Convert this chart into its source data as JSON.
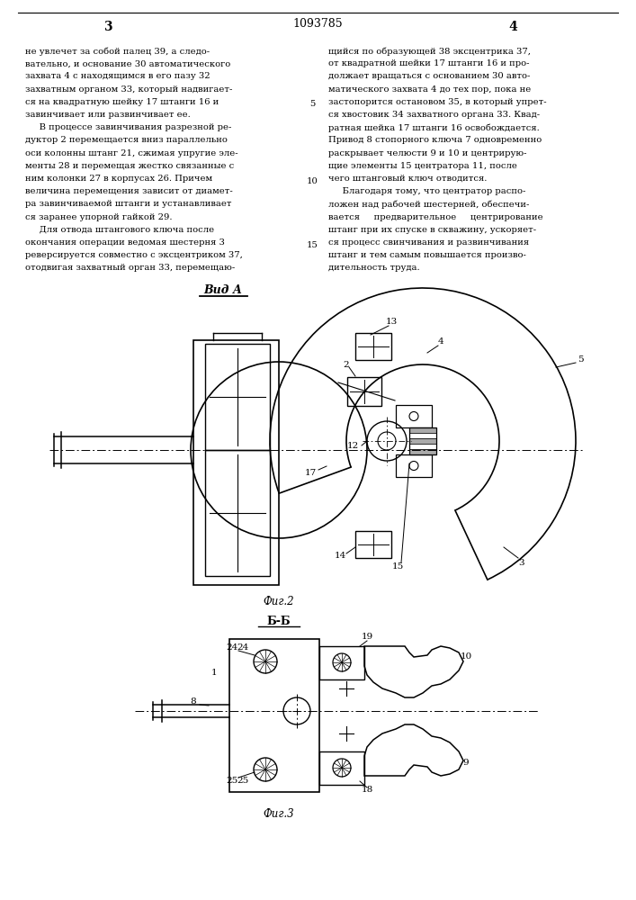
{
  "patent_number": "1093785",
  "page_left": "3",
  "page_right": "4",
  "background_color": "#ffffff",
  "text_color": "#000000",
  "left_column_text": [
    "не увлечет за собой палец 39, а следо-",
    "вательно, и основание 30 автоматического",
    "захвата 4 с находящимся в его пазу 32",
    "захватным органом 33, который надвигает-",
    "ся на квадратную шейку 17 штанги 16 и",
    "завинчивает или развинчивает ее.",
    "     В процессе завинчивания разрезной ре-",
    "дуктор 2 перемещается вниз параллельно",
    "оси колонны штанг 21, сжимая упругие эле-",
    "менты 28 и перемещая жестко связанные с",
    "ним колонки 27 в корпусах 26. Причем",
    "величина перемещения зависит от диамет-",
    "ра завинчиваемой штанги и устанавливает",
    "ся заранее упорной гайкой 29.",
    "     Для отвода штангового ключа после",
    "окончания операции ведомая шестерня 3",
    "реверсируется совместно с эксцентриком 37,",
    "отодвигая захватный орган 33, перемещаю-"
  ],
  "right_column_text": [
    "щийся по образующей 38 эксцентрика 37,",
    "от квадратной шейки 17 штанги 16 и про-",
    "должает вращаться с основанием 30 авто-",
    "матического захвата 4 до тех пор, пока не",
    "застопорится остановом 35, в который упрет-",
    "ся хвостовик 34 захватного органа 33. Квад-",
    "ратная шейка 17 штанги 16 освобождается.",
    "Привод 8 стопорного ключа 7 одновременно",
    "раскрывает челюсти 9 и 10 и центрирую-",
    "щие элементы 15 центратора 11, после",
    "чего штанговый ключ отводится.",
    "     Благодаря тому, что центратор распо-",
    "ложен над рабочей шестерней, обеспечи-",
    "вается     предварительное     центрирование",
    "штанг при их спуске в скважину, ускоряет-",
    "ся процесс свинчивания и развинчивания",
    "штанг и тем самым повышается произво-",
    "дительность труда."
  ],
  "line_num_5_idx": 4,
  "line_num_10_idx": 10,
  "line_num_15_idx": 15,
  "fig2_label": "Вид А",
  "fig3_label": "Б-Б",
  "fig2_caption": "Фиг.2",
  "fig3_caption": "Фиг.3"
}
